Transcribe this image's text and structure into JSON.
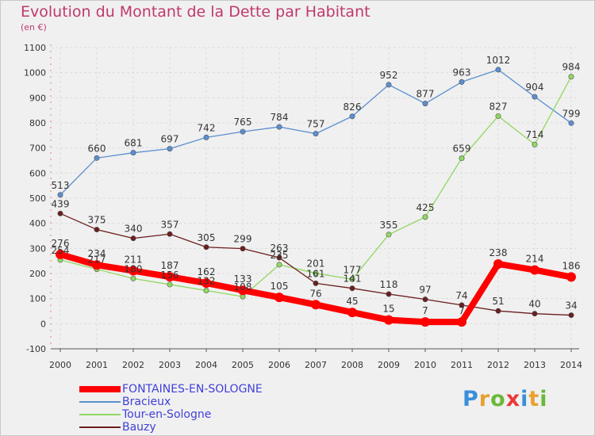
{
  "title": "Evolution du Montant de la Dette par Habitant",
  "subtitle": "(en €)",
  "logo": {
    "text": "Proxiti",
    "colors": [
      "#3a8fd8",
      "#e8a030",
      "#6bb83a",
      "#e83a3a",
      "#3a8fd8",
      "#e8a030",
      "#6bb83a"
    ]
  },
  "chart_data": {
    "type": "line",
    "x": [
      "2000",
      "2001",
      "2002",
      "2003",
      "2004",
      "2005",
      "2006",
      "2007",
      "2008",
      "2009",
      "2010",
      "2011",
      "2012",
      "2013",
      "2014"
    ],
    "ylim": [
      -100,
      1100
    ],
    "yticks": [
      "-100",
      "0",
      "100",
      "200",
      "300",
      "400",
      "500",
      "600",
      "700",
      "800",
      "900",
      "1000",
      "1100"
    ],
    "grid": true,
    "legend": "bottom-left",
    "series": [
      {
        "name": "Bracieux",
        "color": "#5b8fd0",
        "values": [
          513,
          660,
          681,
          697,
          742,
          765,
          784,
          757,
          826,
          952,
          877,
          963,
          1012,
          904,
          799
        ]
      },
      {
        "name": "Tour-en-Sologne",
        "color": "#90d860",
        "values": [
          254,
          217,
          180,
          156,
          132,
          108,
          235,
          201,
          177,
          355,
          425,
          659,
          827,
          714,
          984
        ]
      },
      {
        "name": "Bauzy",
        "color": "#6b1e1e",
        "values": [
          439,
          375,
          340,
          357,
          305,
          299,
          263,
          161,
          141,
          118,
          97,
          74,
          51,
          40,
          34
        ]
      },
      {
        "name": "FONTAINES-EN-SOLOGNE",
        "color": "#ff0000",
        "values": [
          276,
          234,
          211,
          187,
          162,
          133,
          105,
          76,
          45,
          15,
          7,
          7,
          238,
          214,
          186
        ]
      }
    ]
  }
}
